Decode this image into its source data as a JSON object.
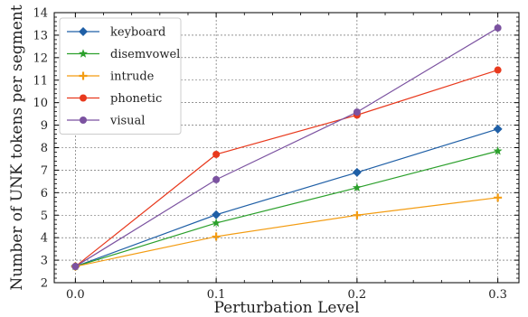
{
  "chart_data": {
    "type": "line",
    "xlabel": "Perturbation Level",
    "ylabel": "Number of UNK tokens per segment",
    "x": [
      0.0,
      0.1,
      0.2,
      0.3
    ],
    "x_ticks": [
      "0.0",
      "0.1",
      "0.2",
      "0.3"
    ],
    "xlim": [
      -0.015,
      0.315
    ],
    "ylim": [
      2,
      14
    ],
    "y_ticks": [
      "2",
      "3",
      "4",
      "5",
      "6",
      "7",
      "8",
      "9",
      "10",
      "11",
      "12",
      "13",
      "14"
    ],
    "grid": true,
    "legend_position": "top-left",
    "series": [
      {
        "name": "keyboard",
        "color": "#1f5fa6",
        "marker": "diamond",
        "values": [
          2.72,
          5.02,
          6.9,
          8.83
        ]
      },
      {
        "name": "disemvowel",
        "color": "#2ca02c",
        "marker": "star",
        "values": [
          2.72,
          4.65,
          6.22,
          7.85
        ]
      },
      {
        "name": "intrude",
        "color": "#f39c12",
        "marker": "plus",
        "values": [
          2.72,
          4.05,
          5.0,
          5.78
        ]
      },
      {
        "name": "phonetic",
        "color": "#e8391d",
        "marker": "circle",
        "values": [
          2.72,
          7.7,
          9.45,
          11.45
        ]
      },
      {
        "name": "visual",
        "color": "#7b52a0",
        "marker": "circle",
        "values": [
          2.72,
          6.58,
          9.58,
          13.32
        ]
      }
    ]
  }
}
